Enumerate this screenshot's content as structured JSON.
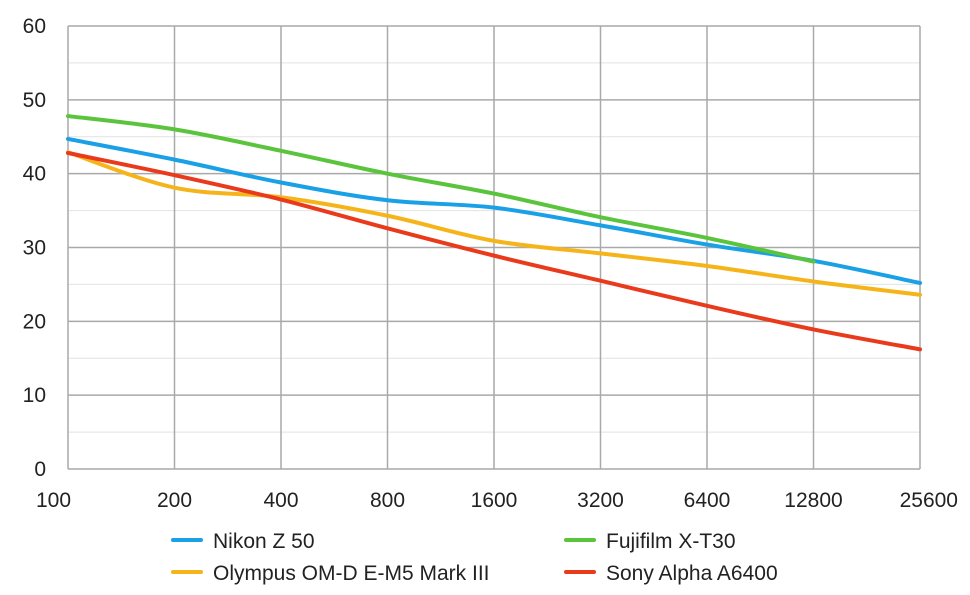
{
  "chart_data": {
    "type": "line",
    "title": "",
    "xlabel": "",
    "ylabel": "",
    "categories": [
      "100",
      "200",
      "400",
      "800",
      "1600",
      "3200",
      "6400",
      "12800",
      "25600"
    ],
    "ylim": [
      0,
      60
    ],
    "yticks": [
      "0",
      "10",
      "20",
      "30",
      "40",
      "50",
      "60"
    ],
    "grid": true,
    "legend_position": "bottom",
    "series": [
      {
        "name": "Nikon Z 50",
        "color": "#1aa0e6",
        "values": [
          44.7,
          41.9,
          38.8,
          36.4,
          35.4,
          33.0,
          30.4,
          28.2,
          25.2
        ]
      },
      {
        "name": "Fujifilm X-T30",
        "color": "#5ac43c",
        "values": [
          47.8,
          46.0,
          43.1,
          40.0,
          37.3,
          34.1,
          31.3,
          28.1,
          null
        ]
      },
      {
        "name": "Olympus OM-D E-M5 Mark III",
        "color": "#f5b51a",
        "values": [
          42.9,
          38.1,
          36.8,
          34.3,
          30.9,
          29.2,
          27.5,
          25.4,
          23.6
        ]
      },
      {
        "name": "Sony Alpha A6400",
        "color": "#ea3a1c",
        "values": [
          42.8,
          39.8,
          36.5,
          32.6,
          28.9,
          25.5,
          22.1,
          18.9,
          16.2
        ]
      }
    ]
  }
}
